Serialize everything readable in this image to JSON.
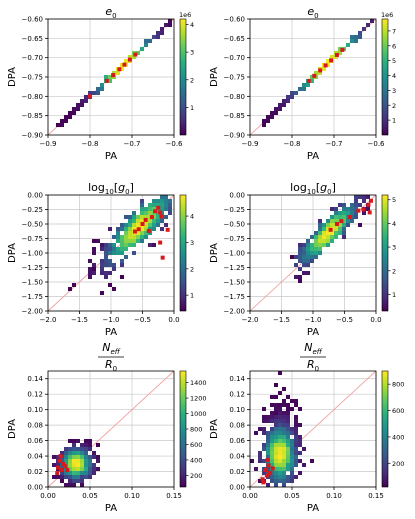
{
  "chart_data": [
    {
      "type": "heatmap",
      "title": "e",
      "title_sub": "0",
      "title_style": "math",
      "xlabel": "PA",
      "ylabel": "DPA",
      "xlim": [
        -0.9,
        -0.6
      ],
      "ylim": [
        -0.9,
        -0.6
      ],
      "xticks": [
        -0.9,
        -0.8,
        -0.7,
        -0.6
      ],
      "xtick_labels": [
        "−0.9",
        "−0.8",
        "−0.7",
        "−0.6"
      ],
      "yticks": [
        -0.9,
        -0.85,
        -0.8,
        -0.75,
        -0.7,
        -0.65,
        -0.6
      ],
      "ytick_labels": [
        "−0.90",
        "−0.85",
        "−0.80",
        "−0.75",
        "−0.70",
        "−0.65",
        "−0.60"
      ],
      "grid": true,
      "diagonal": true,
      "density": {
        "shape": "line",
        "x": [
          -0.875,
          -0.6
        ],
        "center": -0.72,
        "spread": 0.04,
        "n": 160,
        "extra": [
          [
            -0.865,
            -0.865
          ],
          [
            -0.838,
            -0.838
          ],
          [
            -0.835,
            -0.835
          ],
          [
            -0.812,
            -0.812
          ],
          [
            -0.796,
            -0.796
          ],
          [
            -0.648,
            -0.648
          ],
          [
            -0.612,
            -0.612
          ],
          [
            -0.607,
            -0.607
          ]
        ]
      },
      "red_markers": [
        [
          -0.76,
          -0.76
        ],
        [
          -0.745,
          -0.745
        ],
        [
          -0.73,
          -0.73
        ],
        [
          -0.718,
          -0.718
        ],
        [
          -0.705,
          -0.705
        ],
        [
          -0.692,
          -0.692
        ],
        [
          -0.8,
          -0.8
        ]
      ],
      "colorbar": {
        "min": 0,
        "max": 4.2,
        "ticks": [
          1,
          2,
          3,
          4
        ],
        "tick_labels": [
          "1",
          "2",
          "3",
          "4"
        ],
        "offset_label": "1e6"
      }
    },
    {
      "type": "heatmap",
      "title": "e",
      "title_sub": "0",
      "title_style": "math",
      "xlabel": "PA",
      "ylabel": "DPA",
      "xlim": [
        -0.9,
        -0.6
      ],
      "ylim": [
        -0.9,
        -0.6
      ],
      "xticks": [
        -0.9,
        -0.8,
        -0.7,
        -0.6
      ],
      "xtick_labels": [
        "−0.9",
        "−0.8",
        "−0.7",
        "−0.6"
      ],
      "yticks": [
        -0.9,
        -0.85,
        -0.8,
        -0.75,
        -0.7,
        -0.65,
        -0.6
      ],
      "ytick_labels": [
        "−0.90",
        "−0.85",
        "−0.80",
        "−0.75",
        "−0.70",
        "−0.65",
        "−0.60"
      ],
      "grid": true,
      "diagonal": true,
      "density": {
        "shape": "line",
        "x": [
          -0.87,
          -0.6
        ],
        "center": -0.715,
        "spread": 0.045,
        "n": 160,
        "extra": [
          [
            -0.866,
            -0.866
          ],
          [
            -0.836,
            -0.836
          ],
          [
            -0.833,
            -0.833
          ],
          [
            -0.802,
            -0.802
          ],
          [
            -0.64,
            -0.64
          ],
          [
            -0.61,
            -0.61
          ],
          [
            -0.605,
            -0.605
          ]
        ]
      },
      "red_markers": [
        [
          -0.76,
          -0.76
        ],
        [
          -0.747,
          -0.747
        ],
        [
          -0.733,
          -0.733
        ],
        [
          -0.72,
          -0.72
        ],
        [
          -0.707,
          -0.707
        ],
        [
          -0.693,
          -0.693
        ],
        [
          -0.68,
          -0.68
        ]
      ],
      "colorbar": {
        "min": 0,
        "max": 7.8,
        "ticks": [
          1,
          2,
          3,
          4,
          5,
          6,
          7
        ],
        "tick_labels": [
          "1",
          "2",
          "3",
          "4",
          "5",
          "6",
          "7"
        ],
        "offset_label": "1e6"
      }
    },
    {
      "type": "heatmap",
      "title": "log",
      "title_sub": "10",
      "title_arg": "g",
      "title_arg_sub": "0",
      "title_style": "log",
      "xlabel": "PA",
      "ylabel": "DPA",
      "xlim": [
        -2.0,
        0.0
      ],
      "ylim": [
        -2.0,
        0.0
      ],
      "xticks": [
        -2.0,
        -1.5,
        -1.0,
        -0.5,
        0.0
      ],
      "xtick_labels": [
        "−2.0",
        "−1.5",
        "−1.0",
        "−0.5",
        "0.0"
      ],
      "yticks": [
        -2.0,
        -1.75,
        -1.5,
        -1.25,
        -1.0,
        -0.75,
        -0.5,
        -0.25,
        0.0
      ],
      "ytick_labels": [
        "−2.00",
        "−1.75",
        "−1.50",
        "−1.25",
        "−1.00",
        "−0.75",
        "−0.50",
        "−0.25",
        "0.00"
      ],
      "grid": true,
      "diagonal": true,
      "density": {
        "shape": "band",
        "x": [
          -1.7,
          -0.05
        ],
        "center": -0.55,
        "spread": 0.35,
        "ywidth": 0.22,
        "yshift": 0.0,
        "n": 420,
        "extra": [
          [
            -1.6,
            -1.57
          ],
          [
            -1.12,
            -1.7
          ],
          [
            -1.0,
            -1.55
          ],
          [
            -0.95,
            -1.63
          ],
          [
            -0.82,
            -1.38
          ],
          [
            -1.3,
            -1.3
          ]
        ]
      },
      "red_markers": [
        [
          -0.62,
          -0.63
        ],
        [
          -0.56,
          -0.59
        ],
        [
          -0.5,
          -0.5
        ],
        [
          -0.45,
          -0.43
        ],
        [
          -0.35,
          -0.38
        ],
        [
          -0.3,
          -0.28
        ],
        [
          -0.25,
          -0.22
        ],
        [
          -0.22,
          -0.3
        ],
        [
          -0.2,
          -0.37
        ],
        [
          -0.18,
          -1.08
        ],
        [
          -0.22,
          -0.82
        ],
        [
          -0.1,
          -0.6
        ],
        [
          -0.4,
          -0.62
        ]
      ],
      "colorbar": {
        "min": 0.4,
        "max": 4.8,
        "ticks": [
          1,
          2,
          3,
          4
        ],
        "tick_labels": [
          "1",
          "2",
          "3",
          "4"
        ],
        "offset_label": ""
      }
    },
    {
      "type": "heatmap",
      "title": "log",
      "title_sub": "10",
      "title_arg": "g",
      "title_arg_sub": "0",
      "title_style": "log",
      "xlabel": "PA",
      "ylabel": "DPA",
      "xlim": [
        -2.0,
        0.0
      ],
      "ylim": [
        -2.0,
        0.0
      ],
      "xticks": [
        -2.0,
        -1.5,
        -1.0,
        -0.5,
        0.0
      ],
      "xtick_labels": [
        "−2.0",
        "−1.5",
        "−1.0",
        "−0.5",
        "0.0"
      ],
      "yticks": [
        -2.0,
        -1.75,
        -1.5,
        -1.25,
        -1.0,
        -0.75,
        -0.5,
        -0.25,
        0.0
      ],
      "ytick_labels": [
        "−2.00",
        "−1.75",
        "−1.50",
        "−1.25",
        "−1.00",
        "−0.75",
        "−0.50",
        "−0.25",
        "0.00"
      ],
      "grid": true,
      "diagonal": true,
      "density": {
        "shape": "band",
        "x": [
          -1.3,
          -0.05
        ],
        "center": -0.75,
        "spread": 0.3,
        "ywidth": 0.16,
        "yshift": 0.1,
        "n": 380,
        "extra": [
          [
            -1.32,
            -1.08
          ],
          [
            -1.05,
            -0.78
          ],
          [
            -1.12,
            -0.9
          ],
          [
            -1.08,
            -1.1
          ]
        ]
      },
      "red_markers": [
        [
          -0.72,
          -0.6
        ],
        [
          -0.55,
          -0.45
        ],
        [
          -0.42,
          -0.38
        ],
        [
          -0.28,
          -0.27
        ],
        [
          -0.2,
          -0.25
        ],
        [
          -0.12,
          -0.17
        ],
        [
          -0.1,
          -0.3
        ],
        [
          -0.08,
          -0.1
        ],
        [
          -0.62,
          -0.5
        ]
      ],
      "colorbar": {
        "min": 0.3,
        "max": 5.2,
        "ticks": [
          1,
          2,
          3,
          4,
          5
        ],
        "tick_labels": [
          "1",
          "2",
          "3",
          "4",
          "5"
        ],
        "offset_label": ""
      }
    },
    {
      "type": "heatmap",
      "title": "N",
      "title_sub": "eff",
      "title_den": "R",
      "title_den_sub": "0",
      "title_style": "frac",
      "xlabel": "PA",
      "ylabel": "DPA",
      "xlim": [
        0.0,
        0.15
      ],
      "ylim": [
        0.0,
        0.15
      ],
      "xticks": [
        0.0,
        0.05,
        0.1,
        0.15
      ],
      "xtick_labels": [
        "0.00",
        "0.05",
        "0.10",
        "0.15"
      ],
      "yticks": [
        0.0,
        0.02,
        0.04,
        0.06,
        0.08,
        0.1,
        0.12,
        0.14
      ],
      "ytick_labels": [
        "0.00",
        "0.02",
        "0.04",
        "0.06",
        "0.08",
        "0.10",
        "0.12",
        "0.14"
      ],
      "grid": true,
      "diagonal": true,
      "density": {
        "shape": "blob",
        "cx": 0.034,
        "cy": 0.03,
        "sx": 0.01,
        "sy": 0.011,
        "n": 520,
        "extra": [
          [
            0.025,
            0.062
          ],
          [
            0.028,
            0.058
          ],
          [
            0.048,
            0.055
          ],
          [
            0.015,
            0.006
          ],
          [
            0.043,
            0.047
          ]
        ]
      },
      "red_markers": [
        [
          0.012,
          0.025
        ],
        [
          0.016,
          0.022
        ],
        [
          0.014,
          0.034
        ],
        [
          0.018,
          0.03
        ],
        [
          0.02,
          0.027
        ],
        [
          0.023,
          0.022
        ],
        [
          0.011,
          0.018
        ],
        [
          0.015,
          0.04
        ]
      ],
      "colorbar": {
        "min": 50,
        "max": 1550,
        "ticks": [
          200,
          400,
          600,
          800,
          1000,
          1200,
          1400
        ],
        "tick_labels": [
          "200",
          "400",
          "600",
          "800",
          "1000",
          "1200",
          "1400"
        ],
        "offset_label": ""
      }
    },
    {
      "type": "heatmap",
      "title": "N",
      "title_sub": "eff",
      "title_den": "R",
      "title_den_sub": "0",
      "title_style": "frac",
      "xlabel": "PA",
      "ylabel": "DPA",
      "xlim": [
        0.0,
        0.15
      ],
      "ylim": [
        0.0,
        0.15
      ],
      "xticks": [
        0.0,
        0.05,
        0.1,
        0.15
      ],
      "xtick_labels": [
        "0.00",
        "0.05",
        "0.10",
        "0.15"
      ],
      "yticks": [
        0.0,
        0.02,
        0.04,
        0.06,
        0.08,
        0.1,
        0.12,
        0.14
      ],
      "ytick_labels": [
        "0.00",
        "0.02",
        "0.04",
        "0.06",
        "0.08",
        "0.10",
        "0.12",
        "0.14"
      ],
      "grid": true,
      "diagonal": true,
      "density": {
        "shape": "plume",
        "cx": 0.036,
        "cy": 0.042,
        "sx": 0.011,
        "sy": 0.018,
        "n": 560,
        "extra": [
          [
            0.038,
            0.148
          ],
          [
            0.032,
            0.13
          ],
          [
            0.035,
            0.121
          ],
          [
            0.03,
            0.118
          ],
          [
            0.041,
            0.11
          ],
          [
            0.026,
            0.104
          ],
          [
            0.044,
            0.099
          ],
          [
            0.03,
            0.097
          ],
          [
            0.055,
            0.089
          ],
          [
            0.018,
            0.085
          ]
        ]
      },
      "red_markers": [
        [
          0.015,
          0.01
        ],
        [
          0.02,
          0.015
        ],
        [
          0.018,
          0.022
        ],
        [
          0.024,
          0.018
        ],
        [
          0.022,
          0.028
        ],
        [
          0.027,
          0.024
        ],
        [
          0.021,
          0.035
        ],
        [
          0.016,
          0.006
        ]
      ],
      "colorbar": {
        "min": 20,
        "max": 900,
        "ticks": [
          200,
          400,
          600,
          800
        ],
        "tick_labels": [
          "200",
          "400",
          "600",
          "800"
        ],
        "offset_label": ""
      }
    }
  ]
}
